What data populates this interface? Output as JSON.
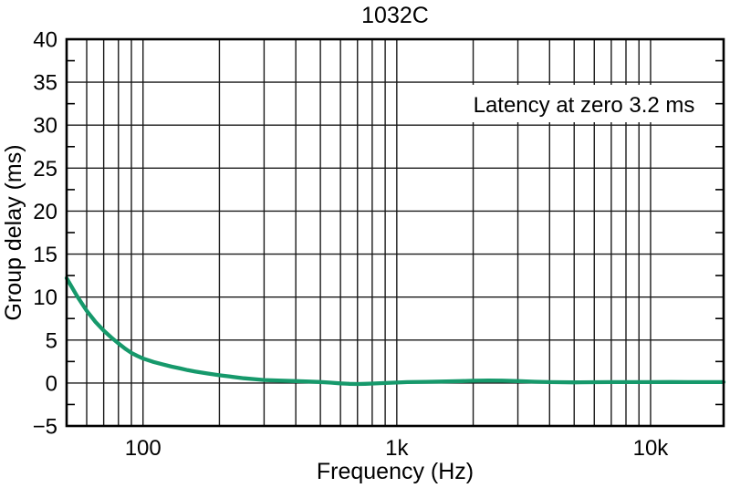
{
  "chart_data": {
    "type": "line",
    "title": "1032C",
    "xlabel": "Frequency (Hz)",
    "ylabel": "Group delay (ms)",
    "x_scale": "log",
    "xlim": [
      50,
      19400
    ],
    "ylim": [
      -5,
      40
    ],
    "grid": true,
    "legend": null,
    "annotation": "Latency at zero 3.2 ms",
    "colors": {
      "curve": "#16996b",
      "grid": "#1a1a1a",
      "axis": "#000000",
      "text": "#000000",
      "annotation_bg": "#ffffff",
      "background": "#ffffff"
    },
    "x_ticks": [
      {
        "f": 100,
        "label": "100"
      },
      {
        "f": 1000,
        "label": "1k"
      },
      {
        "f": 10000,
        "label": "10k"
      }
    ],
    "x_gridlines": [
      60,
      70,
      80,
      90,
      100,
      200,
      300,
      400,
      500,
      600,
      700,
      800,
      900,
      1000,
      2000,
      3000,
      4000,
      5000,
      6000,
      7000,
      8000,
      9000,
      10000
    ],
    "y_major_ticks": [
      {
        "v": 40,
        "label": "40"
      },
      {
        "v": 35,
        "label": "35"
      },
      {
        "v": 30,
        "label": "30"
      },
      {
        "v": 25,
        "label": "25"
      },
      {
        "v": 20,
        "label": "20"
      },
      {
        "v": 15,
        "label": "15"
      },
      {
        "v": 10,
        "label": "10"
      },
      {
        "v": 5,
        "label": "5"
      },
      {
        "v": 0,
        "label": "0"
      },
      {
        "v": -5,
        "label": "−5"
      }
    ],
    "y_minor_ticks": [
      -2.5,
      2.5,
      7.5,
      12.5,
      17.5,
      22.5,
      27.5,
      32.5,
      37.5
    ],
    "series": [
      {
        "name": "group delay",
        "x": [
          50,
          55,
          60,
          65,
          70,
          75,
          80,
          85,
          90,
          95,
          100,
          110,
          120,
          130,
          140,
          150,
          160,
          180,
          200,
          220,
          250,
          280,
          300,
          350,
          400,
          450,
          500,
          550,
          600,
          650,
          700,
          750,
          800,
          900,
          1000,
          1100,
          1300,
          1500,
          1800,
          2000,
          2300,
          2600,
          3000,
          3500,
          4000,
          5000,
          6000,
          7000,
          8000,
          9000,
          10000,
          12000,
          14000,
          16000,
          19400
        ],
        "y": [
          12.2,
          10.1,
          8.4,
          7.1,
          6.1,
          5.3,
          4.6,
          4.0,
          3.5,
          3.15,
          2.85,
          2.45,
          2.15,
          1.9,
          1.7,
          1.5,
          1.35,
          1.1,
          0.9,
          0.75,
          0.55,
          0.42,
          0.35,
          0.27,
          0.22,
          0.17,
          0.12,
          0.04,
          -0.04,
          -0.1,
          -0.12,
          -0.1,
          -0.06,
          0.0,
          0.05,
          0.1,
          0.14,
          0.17,
          0.22,
          0.26,
          0.3,
          0.28,
          0.22,
          0.15,
          0.1,
          0.07,
          0.09,
          0.11,
          0.1,
          0.1,
          0.1,
          0.12,
          0.1,
          0.1,
          0.1
        ]
      }
    ]
  }
}
